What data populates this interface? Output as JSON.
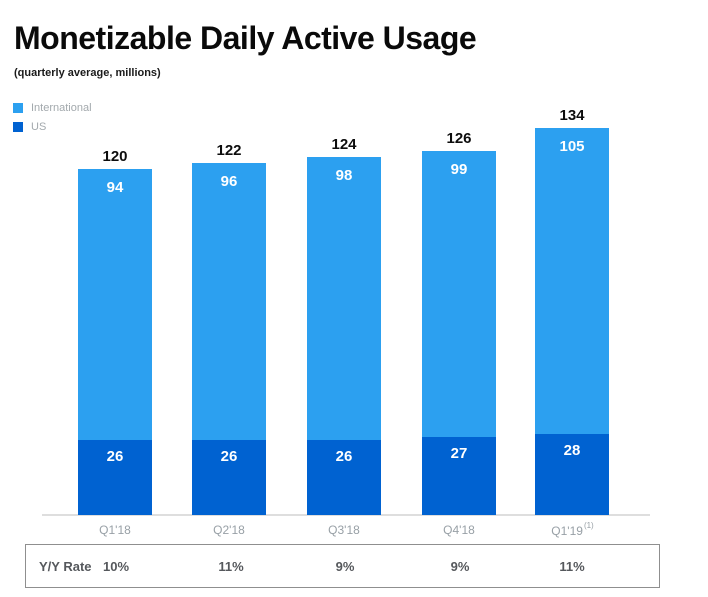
{
  "header": {
    "title": "Monetizable Daily Active Usage",
    "subtitle": "(quarterly average, millions)"
  },
  "legend": {
    "international_label": "International",
    "us_label": "US"
  },
  "chart_data": {
    "type": "bar",
    "stacked": true,
    "title": "Monetizable Daily Active Usage",
    "subtitle": "(quarterly average, millions)",
    "categories": [
      "Q1'18",
      "Q2'18",
      "Q3'18",
      "Q4'18",
      "Q1'19"
    ],
    "series": [
      {
        "name": "International",
        "values": [
          94,
          96,
          98,
          99,
          105
        ],
        "color": "#2ca0f0"
      },
      {
        "name": "US",
        "values": [
          26,
          26,
          26,
          27,
          28
        ],
        "color": "#0062d1"
      }
    ],
    "totals": [
      120,
      122,
      124,
      126,
      134
    ],
    "footnote_marker": "(1)",
    "colors": {
      "international": "#2ca0f0",
      "us": "#0062d1"
    },
    "grid": false,
    "legend_position": "top-left",
    "yy_rate": {
      "label": "Y/Y Rate",
      "values": [
        "10%",
        "11%",
        "9%",
        "9%",
        "11%"
      ]
    }
  }
}
